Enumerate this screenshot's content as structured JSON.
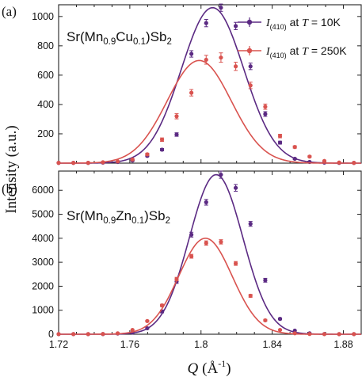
{
  "figure": {
    "ylabel": "Intensity (a.u.)",
    "xlabel_symbol": "Q",
    "xlabel_unit": "(Å",
    "xlabel_unit_sup": "-1",
    "xlabel_unit_close": ")"
  },
  "colors": {
    "t10k": "#5b2a83",
    "t250k": "#d9534f"
  },
  "chart_data": [
    {
      "type": "scatter",
      "panel_label": "(a)",
      "sample_parts": [
        "Sr(Mn",
        "0.9",
        "Cu",
        "0.1",
        ")Sb",
        "2"
      ],
      "legend": [
        {
          "symbol": "I",
          "sub": "(410)",
          "text_pre": " at ",
          "var": "T",
          "text_post": " = 10K",
          "series": 0
        },
        {
          "symbol": "I",
          "sub": "(410)",
          "text_pre": " at ",
          "var": "T",
          "text_post": " = 250K",
          "series": 1
        }
      ],
      "legend_position": "top-right",
      "xlim": [
        1.72,
        1.89
      ],
      "ylim": [
        0,
        1080
      ],
      "yticks": [
        200,
        400,
        600,
        800,
        1000
      ],
      "series": [
        {
          "color_key": "t10k",
          "fit": {
            "peak": 1060,
            "center": 1.8065,
            "sigma": 0.0175
          },
          "x": [
            1.72,
            1.7283,
            1.7366,
            1.7449,
            1.7532,
            1.7615,
            1.7698,
            1.7781,
            1.7863,
            1.7946,
            1.8029,
            1.8112,
            1.8195,
            1.8278,
            1.8361,
            1.8444,
            1.8527,
            1.861,
            1.8693,
            1.8776,
            1.8859
          ],
          "y": [
            2,
            2,
            2,
            4,
            8,
            18,
            50,
            92,
            195,
            745,
            955,
            1060,
            935,
            660,
            335,
            140,
            30,
            8,
            4,
            2,
            2
          ],
          "err": [
            0,
            0,
            0,
            0,
            0,
            4,
            6,
            8,
            12,
            22,
            25,
            25,
            25,
            22,
            16,
            10,
            5,
            0,
            0,
            0,
            0
          ]
        },
        {
          "color_key": "t250k",
          "fit": {
            "peak": 700,
            "center": 1.799,
            "sigma": 0.018
          },
          "x": [
            1.72,
            1.7283,
            1.7366,
            1.7449,
            1.7532,
            1.7615,
            1.7698,
            1.7781,
            1.7863,
            1.7946,
            1.8029,
            1.8112,
            1.8195,
            1.8278,
            1.8361,
            1.8444,
            1.8527,
            1.861,
            1.8693,
            1.8776,
            1.8859
          ],
          "y": [
            2,
            2,
            2,
            6,
            12,
            25,
            60,
            160,
            320,
            480,
            705,
            720,
            660,
            530,
            385,
            185,
            110,
            45,
            15,
            4,
            2
          ],
          "err": [
            0,
            0,
            0,
            0,
            0,
            5,
            8,
            12,
            18,
            22,
            30,
            32,
            28,
            22,
            18,
            12,
            8,
            5,
            0,
            0,
            0
          ]
        }
      ]
    },
    {
      "type": "scatter",
      "panel_label": "(b)",
      "sample_parts": [
        "Sr(Mn",
        "0.9",
        "Zn",
        "0.1",
        ")Sb",
        "2"
      ],
      "xlim": [
        1.72,
        1.89
      ],
      "ylim": [
        0,
        6800
      ],
      "yticks": [
        0,
        1000,
        2000,
        3000,
        4000,
        5000,
        6000
      ],
      "xticks": [
        1.72,
        1.76,
        1.8,
        1.84,
        1.88
      ],
      "xticklabels": [
        "1.72",
        "1.76",
        "1.8",
        "1.84",
        "1.88"
      ],
      "series": [
        {
          "color_key": "t10k",
          "fit": {
            "peak": 6650,
            "center": 1.8085,
            "sigma": 0.015
          },
          "x": [
            1.72,
            1.7283,
            1.7366,
            1.7449,
            1.7532,
            1.7615,
            1.7698,
            1.7781,
            1.7863,
            1.7946,
            1.8029,
            1.8112,
            1.8195,
            1.8278,
            1.8361,
            1.8444,
            1.8527,
            1.861,
            1.8693,
            1.8776,
            1.8859
          ],
          "y": [
            5,
            5,
            5,
            8,
            30,
            70,
            250,
            950,
            2200,
            4150,
            5500,
            6650,
            6100,
            4600,
            2250,
            640,
            150,
            40,
            10,
            5,
            5
          ],
          "err": [
            0,
            0,
            0,
            0,
            0,
            0,
            30,
            60,
            80,
            100,
            120,
            150,
            140,
            100,
            80,
            40,
            0,
            0,
            0,
            0,
            0
          ]
        },
        {
          "color_key": "t250k",
          "fit": {
            "peak": 4000,
            "center": 1.8025,
            "sigma": 0.015
          },
          "x": [
            1.72,
            1.7283,
            1.7366,
            1.7449,
            1.7532,
            1.7615,
            1.7698,
            1.7781,
            1.7863,
            1.7946,
            1.8029,
            1.8112,
            1.8195,
            1.8278,
            1.8361,
            1.8444,
            1.8527,
            1.861,
            1.8693,
            1.8776,
            1.8859
          ],
          "y": [
            5,
            5,
            5,
            10,
            40,
            180,
            550,
            1200,
            2300,
            3250,
            3800,
            3850,
            2950,
            1600,
            580,
            180,
            40,
            10,
            5,
            5,
            5
          ],
          "err": [
            0,
            0,
            0,
            0,
            0,
            0,
            30,
            50,
            70,
            80,
            90,
            90,
            80,
            60,
            40,
            0,
            0,
            0,
            0,
            0,
            0
          ]
        }
      ]
    }
  ]
}
